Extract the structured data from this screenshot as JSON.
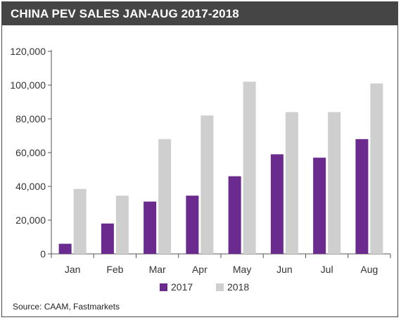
{
  "title": "CHINA PEV SALES JAN-AUG 2017-2018",
  "source": "Source: CAAM, Fastmarkets",
  "colors": {
    "2017": "#6b2a8e",
    "2018": "#cfcfcf"
  },
  "chart_data": {
    "type": "bar",
    "title": "CHINA PEV SALES JAN-AUG 2017-2018",
    "categories": [
      "Jan",
      "Feb",
      "Mar",
      "Apr",
      "May",
      "Jun",
      "Jul",
      "Aug"
    ],
    "series": [
      {
        "name": "2017",
        "values": [
          6000,
          18000,
          31000,
          34500,
          46000,
          59000,
          57000,
          68000
        ]
      },
      {
        "name": "2018",
        "values": [
          38500,
          34500,
          68000,
          82000,
          102000,
          84000,
          84000,
          101000
        ]
      }
    ],
    "yticks": [
      "0",
      "20,000",
      "40,000",
      "60,000",
      "80,000",
      "100,000",
      "120,000"
    ],
    "ylim": [
      0,
      120000
    ],
    "grid": false,
    "legend": "bottom"
  }
}
